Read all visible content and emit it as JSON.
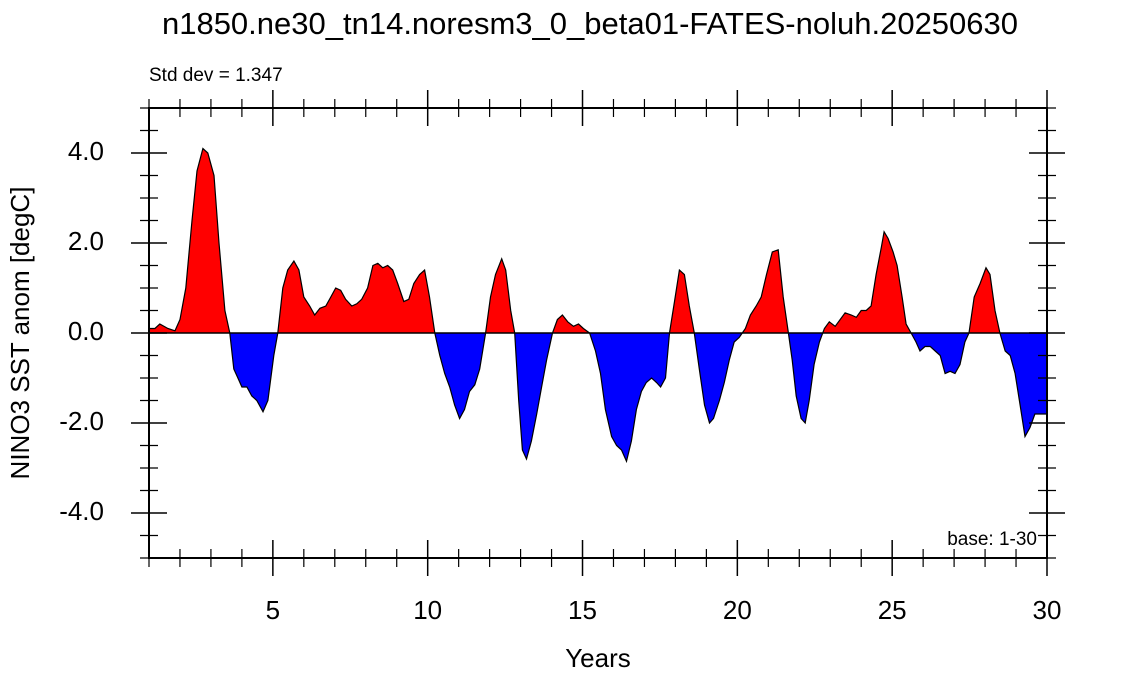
{
  "chart_data": {
    "type": "area",
    "title": "n1850.ne30_tn14.noresm3_0_beta01-FATES-noluh.20250630",
    "annotations": [
      "Std dev = 1.347",
      "base: 1-30"
    ],
    "xlabel": "Years",
    "ylabel": "NINO3 SST anom [degC]",
    "above_color": "#ff0000",
    "below_color": "#0000ff",
    "line_color": "#000000",
    "x": [
      1.0,
      1.19,
      1.35,
      1.61,
      1.84,
      2.0,
      2.19,
      2.39,
      2.55,
      2.74,
      2.9,
      3.1,
      3.26,
      3.45,
      3.61,
      3.74,
      3.87,
      4.0,
      4.16,
      4.32,
      4.48,
      4.68,
      4.84,
      5.03,
      5.16,
      5.32,
      5.48,
      5.68,
      5.84,
      6.0,
      6.19,
      6.35,
      6.52,
      6.71,
      6.87,
      7.03,
      7.19,
      7.35,
      7.55,
      7.71,
      7.87,
      8.06,
      8.23,
      8.39,
      8.55,
      8.71,
      8.87,
      9.03,
      9.23,
      9.39,
      9.55,
      9.74,
      9.9,
      10.06,
      10.23,
      10.39,
      10.55,
      10.71,
      10.87,
      11.03,
      11.19,
      11.35,
      11.52,
      11.68,
      11.87,
      12.03,
      12.19,
      12.39,
      12.52,
      12.68,
      12.81,
      12.94,
      13.06,
      13.19,
      13.35,
      13.52,
      13.68,
      13.84,
      14.03,
      14.19,
      14.35,
      14.52,
      14.71,
      14.87,
      15.03,
      15.23,
      15.42,
      15.58,
      15.74,
      15.94,
      16.1,
      16.26,
      16.42,
      16.58,
      16.74,
      16.9,
      17.06,
      17.23,
      17.39,
      17.52,
      17.68,
      17.81,
      17.97,
      18.13,
      18.29,
      18.45,
      18.61,
      18.77,
      18.94,
      19.1,
      19.23,
      19.42,
      19.58,
      19.74,
      19.9,
      20.06,
      20.26,
      20.42,
      20.61,
      20.77,
      20.94,
      21.13,
      21.32,
      21.48,
      21.65,
      21.77,
      21.9,
      22.06,
      22.19,
      22.32,
      22.48,
      22.65,
      22.81,
      22.97,
      23.16,
      23.32,
      23.48,
      23.68,
      23.84,
      24.0,
      24.16,
      24.32,
      24.48,
      24.65,
      24.74,
      24.87,
      25.03,
      25.16,
      25.32,
      25.45,
      25.61,
      25.77,
      25.9,
      26.06,
      26.23,
      26.39,
      26.55,
      26.71,
      26.87,
      27.03,
      27.19,
      27.35,
      27.48,
      27.65,
      27.84,
      28.03,
      28.16,
      28.32,
      28.48,
      28.65,
      28.81,
      28.97,
      29.13,
      29.29,
      29.45,
      29.61,
      29.77,
      30.0
    ],
    "values": [
      0.1,
      0.1,
      0.2,
      0.1,
      0.05,
      0.3,
      1.0,
      2.5,
      3.6,
      4.1,
      4.0,
      3.5,
      2.0,
      0.5,
      0.0,
      -0.8,
      -1.0,
      -1.2,
      -1.2,
      -1.4,
      -1.5,
      -1.75,
      -1.5,
      -0.5,
      0.0,
      1.0,
      1.4,
      1.6,
      1.4,
      0.8,
      0.6,
      0.4,
      0.55,
      0.6,
      0.8,
      1.0,
      0.95,
      0.75,
      0.6,
      0.65,
      0.75,
      1.0,
      1.5,
      1.55,
      1.45,
      1.5,
      1.4,
      1.1,
      0.7,
      0.75,
      1.1,
      1.3,
      1.4,
      0.8,
      0.0,
      -0.5,
      -0.9,
      -1.2,
      -1.6,
      -1.9,
      -1.7,
      -1.3,
      -1.15,
      -0.8,
      0.0,
      0.8,
      1.3,
      1.65,
      1.4,
      0.5,
      0.0,
      -1.5,
      -2.6,
      -2.8,
      -2.4,
      -1.8,
      -1.2,
      -0.6,
      0.0,
      0.3,
      0.4,
      0.25,
      0.15,
      0.2,
      0.1,
      0.0,
      -0.4,
      -0.9,
      -1.7,
      -2.3,
      -2.5,
      -2.6,
      -2.85,
      -2.4,
      -1.7,
      -1.3,
      -1.1,
      -1.0,
      -1.1,
      -1.2,
      -1.0,
      0.0,
      0.7,
      1.4,
      1.3,
      0.6,
      0.0,
      -0.8,
      -1.6,
      -2.0,
      -1.9,
      -1.5,
      -1.1,
      -0.6,
      -0.2,
      -0.1,
      0.1,
      0.4,
      0.6,
      0.8,
      1.3,
      1.8,
      1.85,
      0.8,
      0.0,
      -0.6,
      -1.4,
      -1.9,
      -2.0,
      -1.5,
      -0.7,
      -0.2,
      0.1,
      0.25,
      0.15,
      0.3,
      0.45,
      0.4,
      0.35,
      0.5,
      0.5,
      0.6,
      1.3,
      1.9,
      2.25,
      2.1,
      1.8,
      1.5,
      0.8,
      0.2,
      0.0,
      -0.2,
      -0.4,
      -0.3,
      -0.3,
      -0.4,
      -0.5,
      -0.9,
      -0.85,
      -0.9,
      -0.7,
      -0.2,
      0.0,
      0.8,
      1.1,
      1.45,
      1.3,
      0.5,
      0.0,
      -0.4,
      -0.5,
      -0.9,
      -1.6,
      -2.3,
      -2.1,
      -1.8,
      -1.8,
      -1.8
    ],
    "xlim": [
      1,
      30
    ],
    "xticks": [
      5,
      10,
      15,
      20,
      25,
      30
    ],
    "xminorticks": [
      1,
      2,
      3,
      4,
      6,
      7,
      8,
      9,
      11,
      12,
      13,
      14,
      16,
      17,
      18,
      19,
      21,
      22,
      23,
      24,
      26,
      27,
      28,
      29
    ],
    "ylim": [
      -5,
      5
    ],
    "yticks": [
      {
        "value": -4,
        "label": "-4.0"
      },
      {
        "value": -2,
        "label": "-2.0"
      },
      {
        "value": 0,
        "label": "0.0"
      },
      {
        "value": 2,
        "label": "2.0"
      },
      {
        "value": 4,
        "label": "4.0"
      }
    ],
    "yminorticks": [
      -5,
      -4.5,
      -3.5,
      -3,
      -2.5,
      -1.5,
      -1,
      -0.5,
      0.5,
      1,
      1.5,
      2.5,
      3,
      3.5,
      4.5,
      5
    ],
    "reference_line": 0
  }
}
